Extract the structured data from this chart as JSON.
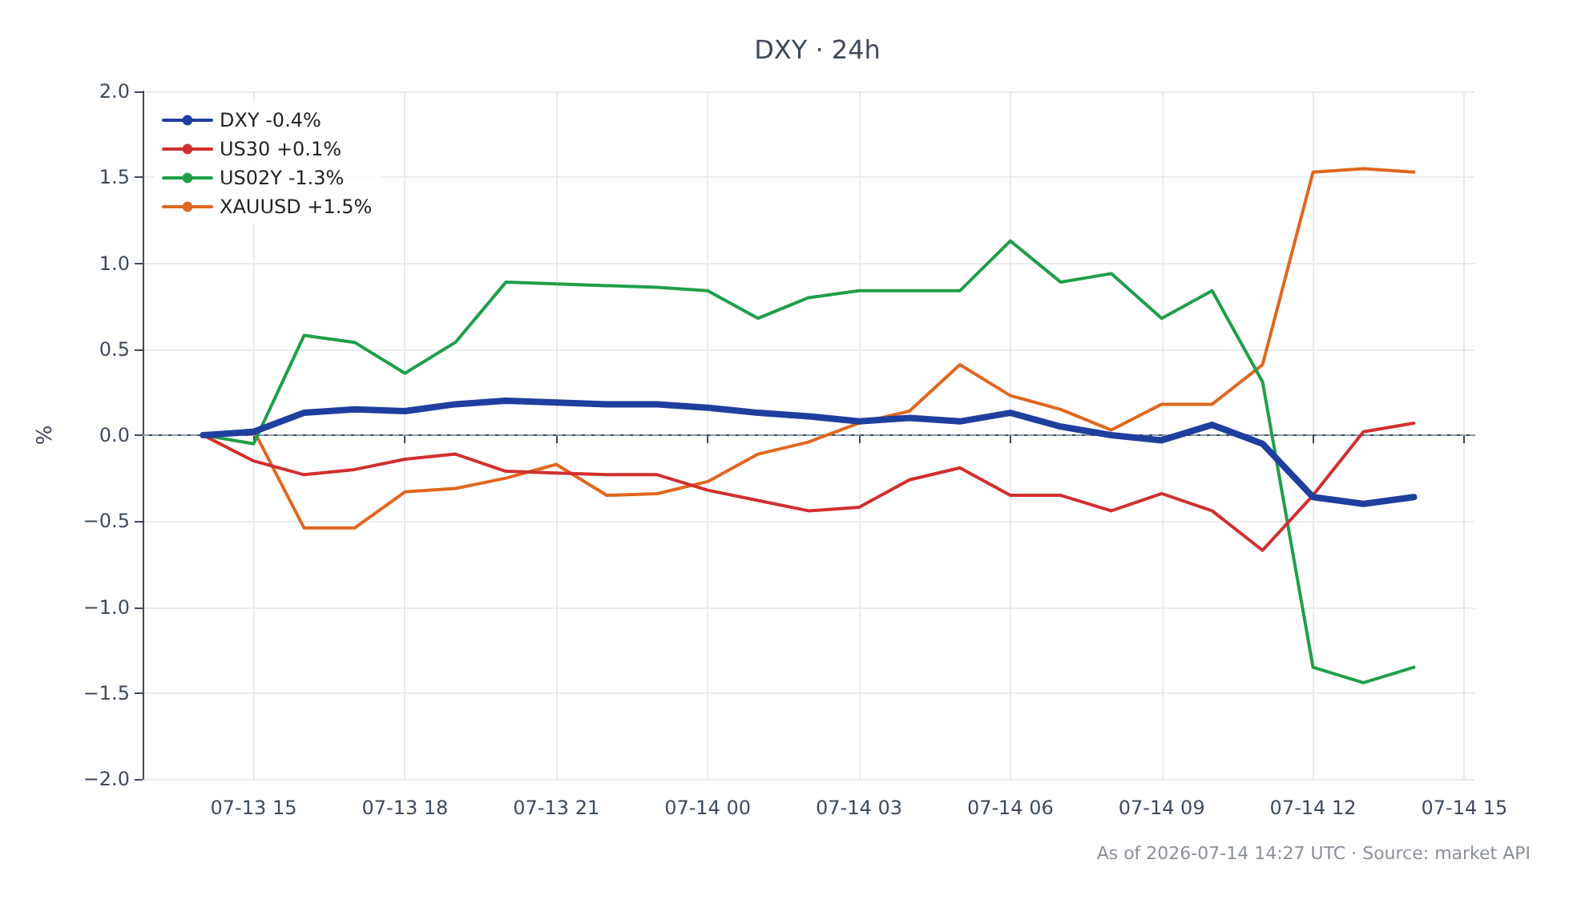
{
  "chart_data": {
    "type": "line",
    "title": "DXY · 24h",
    "ylabel": "%",
    "x": [
      "2026-07-13T14:00",
      "2026-07-13T15:00",
      "2026-07-13T16:00",
      "2026-07-13T17:00",
      "2026-07-13T18:00",
      "2026-07-13T19:00",
      "2026-07-13T20:00",
      "2026-07-13T21:00",
      "2026-07-13T22:00",
      "2026-07-13T23:00",
      "2026-07-14T00:00",
      "2026-07-14T01:00",
      "2026-07-14T02:00",
      "2026-07-14T03:00",
      "2026-07-14T04:00",
      "2026-07-14T05:00",
      "2026-07-14T06:00",
      "2026-07-14T07:00",
      "2026-07-14T08:00",
      "2026-07-14T09:00",
      "2026-07-14T10:00",
      "2026-07-14T11:00",
      "2026-07-14T12:00",
      "2026-07-14T13:00",
      "2026-07-14T14:00"
    ],
    "series": [
      {
        "name": "DXY -0.4%",
        "color": "#1f3f9f",
        "values": [
          0,
          0.02,
          0.13,
          0.15,
          0.14,
          0.18,
          0.2,
          0.19,
          0.18,
          0.18,
          0.16,
          0.13,
          0.11,
          0.08,
          0.1,
          0.08,
          0.13,
          0.05,
          0,
          -0.03,
          0.06,
          -0.05,
          -0.36,
          -0.4,
          -0.36
        ]
      },
      {
        "name": "US30 +0.1%",
        "color": "#d12f2f",
        "values": [
          0,
          -0.15,
          -0.23,
          -0.2,
          -0.14,
          -0.11,
          -0.21,
          -0.22,
          -0.23,
          -0.23,
          -0.32,
          -0.38,
          -0.44,
          -0.42,
          -0.26,
          -0.19,
          -0.35,
          -0.35,
          -0.44,
          -0.34,
          -0.44,
          -0.67,
          -0.35,
          0.02,
          0.07
        ]
      },
      {
        "name": "US02Y -1.3%",
        "color": "#1f9e4a",
        "values": [
          0,
          -0.05,
          0.58,
          0.54,
          0.36,
          0.54,
          0.89,
          0.88,
          0.87,
          0.86,
          0.84,
          0.68,
          0.8,
          0.84,
          0.84,
          0.84,
          1.13,
          0.89,
          0.94,
          0.68,
          0.84,
          0.31,
          -1.35,
          -1.44,
          -1.35
        ]
      },
      {
        "name": "XAUUSD +1.5%",
        "color": "#e0671f",
        "values": [
          0,
          0.03,
          -0.54,
          -0.54,
          -0.33,
          -0.31,
          -0.25,
          -0.17,
          -0.35,
          -0.34,
          -0.27,
          -0.11,
          -0.04,
          0.07,
          0.14,
          0.41,
          0.23,
          0.15,
          0.03,
          0.18,
          0.18,
          0.41,
          1.53,
          1.55,
          1.53
        ]
      }
    ],
    "xlim": [
      "2026-07-13T12:48",
      "2026-07-14T15:12"
    ],
    "xticks": [
      {
        "value": "2026-07-13T15:00",
        "label": "07-13 15"
      },
      {
        "value": "2026-07-13T18:00",
        "label": "07-13 18"
      },
      {
        "value": "2026-07-13T21:00",
        "label": "07-13 21"
      },
      {
        "value": "2026-07-14T00:00",
        "label": "07-14 00"
      },
      {
        "value": "2026-07-14T03:00",
        "label": "07-14 03"
      },
      {
        "value": "2026-07-14T06:00",
        "label": "07-14 06"
      },
      {
        "value": "2026-07-14T09:00",
        "label": "07-14 09"
      },
      {
        "value": "2026-07-14T12:00",
        "label": "07-14 12"
      },
      {
        "value": "2026-07-14T15:00",
        "label": "07-14 15"
      }
    ],
    "ylim": [
      -2,
      2
    ],
    "yticks": [
      {
        "value": -2,
        "label": "−2.0"
      },
      {
        "value": -1.5,
        "label": "−1.5"
      },
      {
        "value": -1,
        "label": "−1.0"
      },
      {
        "value": -0.5,
        "label": "−0.5"
      },
      {
        "value": 0,
        "label": "0.0"
      },
      {
        "value": 0.5,
        "label": "0.5"
      },
      {
        "value": 1,
        "label": "1.0"
      },
      {
        "value": 1.5,
        "label": "1.5"
      },
      {
        "value": 2,
        "label": "2.0"
      }
    ],
    "ref_lines": [
      {
        "axis": "y",
        "value": 0,
        "color": "#8c9bb0",
        "line_style": "dashed"
      }
    ],
    "annotations": [
      "As of 2026-07-14 14:27 UTC · Source: market API"
    ],
    "grid": true,
    "legend": "top left",
    "marker": "none",
    "line_style": "solid"
  }
}
